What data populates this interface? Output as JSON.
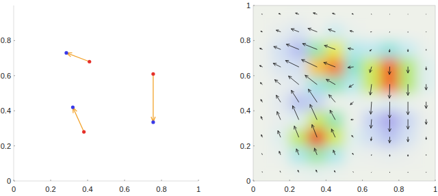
{
  "chart_data": [
    {
      "type": "quiver",
      "marker": "circle",
      "color": "#f2a32c",
      "x": [
        0.41,
        0.38,
        0.755
      ],
      "y": [
        0.68,
        0.28,
        0.61
      ],
      "x_end": [
        0.285,
        0.32,
        0.755
      ],
      "y_end": [
        0.73,
        0.42,
        0.335
      ],
      "xlim": [
        0,
        1
      ],
      "ylim": [
        0,
        1
      ],
      "xticks": [
        0,
        0.2,
        0.4,
        0.6,
        0.8,
        1
      ],
      "yticks": [
        0,
        0.2,
        0.4,
        0.6,
        0.8
      ]
    },
    {
      "type": "heatmap",
      "color": "#111111",
      "x": [
        0.05,
        0.15,
        0.25,
        0.35,
        0.45,
        0.55,
        0.65,
        0.75,
        0.85,
        0.95
      ],
      "y": [
        0.05,
        0.15,
        0.25,
        0.35,
        0.45,
        0.55,
        0.65,
        0.75,
        0.85,
        0.95
      ],
      "cells": [
        [
          0,
          0,
          0.01,
          0.02,
          0.01,
          0,
          0,
          0,
          0,
          0
        ],
        [
          0,
          0.01,
          0.12,
          0.27,
          0.12,
          0.01,
          -0.02,
          -0.04,
          -0.02,
          0
        ],
        [
          0,
          0.03,
          0.38,
          0.88,
          0.42,
          0.03,
          -0.14,
          -0.28,
          -0.12,
          -0.01
        ],
        [
          0,
          -0.03,
          0.03,
          0.4,
          0.25,
          0,
          -0.21,
          -0.43,
          -0.18,
          -0.02
        ],
        [
          0,
          -0.06,
          -0.28,
          -0.21,
          0,
          0.01,
          0.01,
          0.03,
          0.01,
          0
        ],
        [
          0,
          -0.03,
          -0.07,
          0.15,
          0.24,
          0.1,
          0.4,
          0.81,
          0.34,
          0.03
        ],
        [
          -0.01,
          -0.09,
          -0.13,
          0.61,
          0.78,
          0.21,
          0.41,
          0.82,
          0.34,
          0.03
        ],
        [
          -0.01,
          -0.13,
          -0.31,
          0.25,
          0.47,
          0.11,
          0.09,
          0.17,
          0.07,
          0.01
        ],
        [
          0,
          -0.04,
          -0.1,
          -0.01,
          0.06,
          0.01,
          0,
          0,
          0,
          0
        ],
        [
          0,
          0,
          -0.01,
          0,
          0,
          0,
          0,
          0,
          0,
          0
        ]
      ],
      "u": [
        [
          -0.01,
          -0.03,
          -0.05,
          -0.05,
          -0.04,
          -0.02,
          -0.01,
          0,
          0,
          0
        ],
        [
          -0.03,
          -0.08,
          -0.14,
          -0.15,
          -0.11,
          -0.05,
          -0.01,
          0,
          0,
          0
        ],
        [
          -0.06,
          -0.16,
          -0.27,
          -0.3,
          -0.22,
          -0.1,
          -0.03,
          -0.01,
          0,
          0
        ],
        [
          -0.08,
          -0.21,
          -0.37,
          -0.42,
          -0.31,
          -0.14,
          -0.04,
          -0.01,
          0,
          0
        ],
        [
          -0.09,
          -0.26,
          -0.45,
          -0.52,
          -0.38,
          -0.18,
          -0.05,
          -0.01,
          0,
          0
        ],
        [
          -0.12,
          -0.35,
          -0.62,
          -0.72,
          -0.54,
          -0.26,
          -0.08,
          -0.02,
          0,
          0
        ],
        [
          -0.16,
          -0.44,
          -0.8,
          -0.93,
          -0.69,
          -0.33,
          -0.1,
          -0.02,
          0,
          0
        ],
        [
          -0.15,
          -0.41,
          -0.75,
          -0.87,
          -0.65,
          -0.32,
          -0.1,
          -0.02,
          0,
          0
        ],
        [
          -0.09,
          -0.26,
          -0.46,
          -0.54,
          -0.41,
          -0.2,
          -0.06,
          -0.01,
          0,
          0
        ],
        [
          -0.04,
          -0.1,
          -0.19,
          -0.22,
          -0.16,
          -0.08,
          -0.02,
          0,
          0,
          0
        ]
      ],
      "v": [
        [
          0.03,
          0.07,
          0.12,
          0.13,
          0.09,
          0.03,
          -0.01,
          -0.02,
          -0.02,
          -0.01
        ],
        [
          0.07,
          0.2,
          0.35,
          0.39,
          0.27,
          0.08,
          -0.05,
          -0.1,
          -0.09,
          -0.04
        ],
        [
          0.14,
          0.39,
          0.67,
          0.76,
          0.49,
          0.09,
          -0.22,
          -0.35,
          -0.28,
          -0.14
        ],
        [
          0.18,
          0.48,
          0.84,
          0.92,
          0.57,
          -0.01,
          -0.52,
          -0.73,
          -0.58,
          -0.29
        ],
        [
          0.15,
          0.41,
          0.71,
          0.78,
          0.44,
          -0.16,
          -0.74,
          -0.98,
          -0.77,
          -0.39
        ],
        [
          0.11,
          0.29,
          0.51,
          0.56,
          0.31,
          -0.17,
          -0.64,
          -0.84,
          -0.66,
          -0.33
        ],
        [
          0.08,
          0.22,
          0.39,
          0.44,
          0.27,
          -0.04,
          -0.34,
          -0.46,
          -0.37,
          -0.18
        ],
        [
          0.06,
          0.17,
          0.31,
          0.35,
          0.24,
          0.06,
          -0.1,
          -0.16,
          -0.13,
          -0.06
        ],
        [
          0.03,
          0.1,
          0.18,
          0.21,
          0.15,
          0.06,
          -0.01,
          -0.03,
          -0.03,
          -0.01
        ],
        [
          0.01,
          0.04,
          0.07,
          0.08,
          0.06,
          0.03,
          0.01,
          0,
          0,
          0
        ]
      ],
      "xlim": [
        0,
        1
      ],
      "ylim": [
        0,
        1
      ],
      "xticks": [
        0,
        0.2,
        0.4,
        0.6,
        0.8,
        1
      ],
      "yticks": [
        0,
        0.2,
        0.4,
        0.6,
        0.8,
        1
      ]
    }
  ]
}
